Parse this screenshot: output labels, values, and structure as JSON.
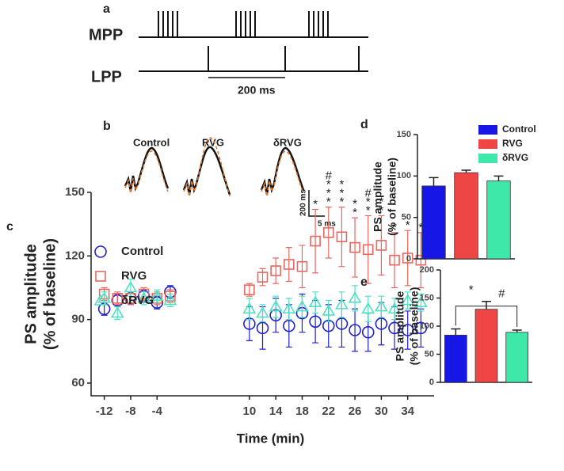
{
  "panel_labels": [
    "a",
    "b",
    "c",
    "d",
    "e"
  ],
  "diagram_a": {
    "rows": [
      "MPP",
      "LPP"
    ],
    "scale_label": "200 ms"
  },
  "traces_b": {
    "labels": [
      "Control",
      "RVG",
      "δRVG"
    ],
    "scale_labels": [
      "200 ms",
      "5 ms"
    ]
  },
  "chart_data": [
    {
      "type": "scatter",
      "xlabel": "Time (min)",
      "ylabel": [
        "PS amplitude",
        "(% of baseline)"
      ],
      "x": [
        -12,
        -10,
        -8,
        -6,
        -4,
        -2,
        10,
        12,
        14,
        16,
        18,
        20,
        22,
        24,
        26,
        28,
        30,
        32,
        34,
        36
      ],
      "xlim": [
        -14,
        38
      ],
      "xticks": [
        -12,
        -8,
        -4,
        10,
        14,
        18,
        22,
        26,
        30,
        34
      ],
      "ylim": [
        54,
        150
      ],
      "yticks": [
        60,
        90,
        120,
        150
      ],
      "series": [
        {
          "name": "Control",
          "color": "#2020d0",
          "marker": "circle",
          "values": [
            95,
            99,
            100,
            101,
            98,
            103,
            88,
            86,
            92,
            87,
            93,
            89,
            87,
            88,
            85,
            84,
            88,
            86,
            85,
            86
          ],
          "errors": [
            3,
            3,
            3,
            3,
            3,
            3,
            8,
            10,
            8,
            10,
            9,
            10,
            10,
            11,
            10,
            9,
            10,
            10,
            9,
            9
          ]
        },
        {
          "name": "RVG",
          "color": "#e8685f",
          "marker": "square",
          "values": [
            102,
            100,
            100,
            102,
            100,
            101,
            104,
            110,
            113,
            116,
            115,
            127,
            131,
            129,
            124,
            123,
            125,
            118,
            119,
            118
          ],
          "errors": [
            3,
            3,
            3,
            3,
            3,
            3,
            3,
            4,
            6,
            8,
            10,
            15,
            12,
            14,
            14,
            16,
            14,
            13,
            13,
            13
          ]
        },
        {
          "name": "δRVG",
          "color": "#50e0c0",
          "marker": "triangle",
          "values": [
            100,
            93,
            105,
            100,
            101,
            99,
            95,
            93,
            96,
            95,
            96,
            98,
            94,
            97,
            100,
            95,
            96,
            95,
            99,
            98
          ],
          "errors": [
            3,
            3,
            4,
            3,
            3,
            3,
            5,
            4,
            5,
            5,
            5,
            5,
            5,
            6,
            6,
            6,
            5,
            5,
            4,
            4
          ]
        }
      ],
      "annotations": [
        {
          "x": 20,
          "labels": [
            "*"
          ]
        },
        {
          "x": 22,
          "labels": [
            "#",
            "*",
            "*",
            "*"
          ]
        },
        {
          "x": 24,
          "labels": [
            "*",
            "*",
            "*"
          ]
        },
        {
          "x": 26,
          "labels": [
            "*",
            "*"
          ]
        },
        {
          "x": 28,
          "labels": [
            "#",
            "*",
            "*"
          ]
        },
        {
          "x": 30,
          "labels": [
            "*",
            "*"
          ]
        },
        {
          "x": 32,
          "labels": [
            "*"
          ]
        },
        {
          "x": 34,
          "labels": [
            "*"
          ]
        },
        {
          "x": 36,
          "labels": [
            "*"
          ]
        }
      ]
    },
    {
      "type": "bar",
      "ylabel": [
        "PS amplitude",
        "(% of baseline)"
      ],
      "categories": [
        "Control",
        "RVG",
        "δRVG"
      ],
      "values": [
        88,
        104,
        94
      ],
      "errors": [
        10,
        3,
        6
      ],
      "colors": [
        "#1616e6",
        "#f04545",
        "#3ee8a8"
      ],
      "ylim": [
        0,
        150
      ],
      "yticks": [
        0,
        50,
        100,
        150
      ]
    },
    {
      "type": "bar",
      "ylabel": [
        "PS amplitude",
        "(% of baseline)"
      ],
      "values": [
        84,
        130,
        89
      ],
      "errors": [
        11,
        14,
        4
      ],
      "colors": [
        "#1616e6",
        "#f04545",
        "#3ee8a8"
      ],
      "ylim": [
        0,
        200
      ],
      "yticks": [
        0,
        50,
        100,
        150,
        200
      ],
      "annotations": [
        "*",
        "#"
      ]
    }
  ]
}
